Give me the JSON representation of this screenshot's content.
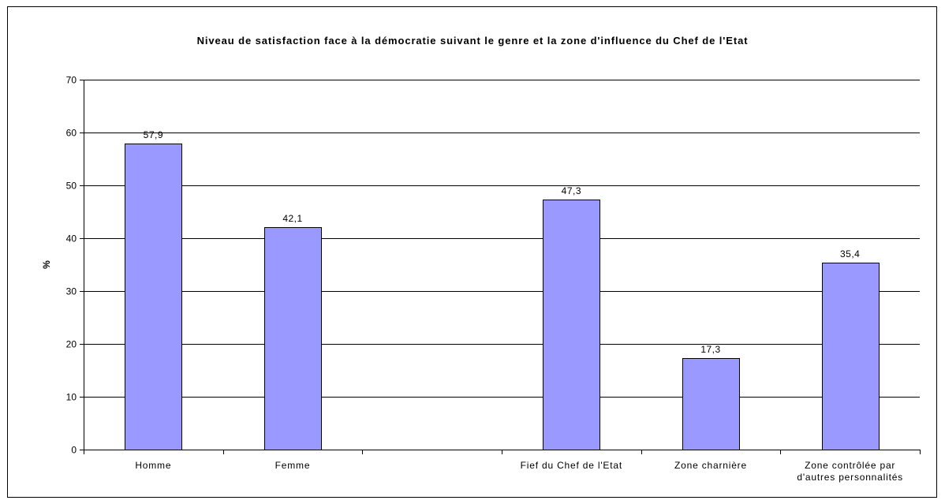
{
  "chart_data": {
    "type": "bar",
    "title": "Niveau de satisfaction face à la démocratie suivant le genre et la zone d'influence du Chef de l'Etat",
    "xlabel": "",
    "ylabel": "%",
    "ylim": [
      0,
      70
    ],
    "yticks": [
      0,
      10,
      20,
      30,
      40,
      50,
      60,
      70
    ],
    "grid": true,
    "bar_color": "#9999ff",
    "categories": [
      "Homme",
      "Femme",
      "",
      "Fief du Chef de l'Etat",
      "Zone charnière",
      "Zone contrôlée par d'autres personnalités"
    ],
    "category_lines": [
      [
        "Homme"
      ],
      [
        "Femme"
      ],
      [],
      [
        "Fief du Chef de l'Etat"
      ],
      [
        "Zone charnière"
      ],
      [
        "Zone contrôlée par",
        "d'autres personnalités"
      ]
    ],
    "values": [
      57.9,
      42.1,
      null,
      47.3,
      17.3,
      35.4
    ],
    "value_labels": [
      "57,9",
      "42,1",
      "",
      "47,3",
      "17,3",
      "35,4"
    ]
  }
}
